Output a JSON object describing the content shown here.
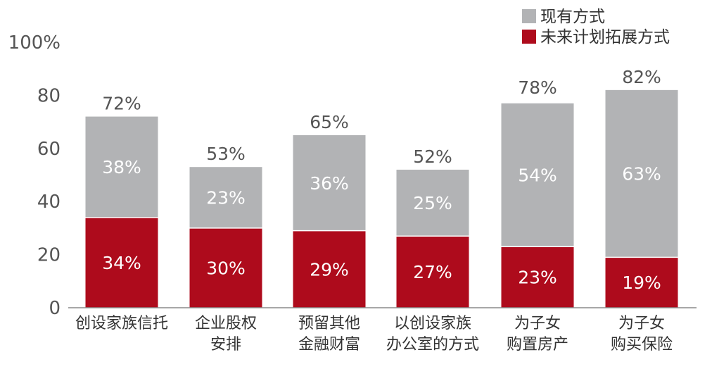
{
  "chart_data": {
    "type": "bar",
    "stacked": true,
    "categories": [
      [
        "创设家族信托"
      ],
      [
        "企业股权",
        "安排"
      ],
      [
        "预留其他",
        "金融财富"
      ],
      [
        "以创设家族",
        "办公室的方式"
      ],
      [
        "为子女",
        "购置房产"
      ],
      [
        "为子女",
        "购买保险"
      ]
    ],
    "series": [
      {
        "name": "未来计划拓展方式",
        "color": "#ae0b1c",
        "values": [
          34,
          30,
          29,
          27,
          23,
          19
        ],
        "labels": [
          "34%",
          "30%",
          "29%",
          "27%",
          "23%",
          "19%"
        ]
      },
      {
        "name": "现有方式",
        "color": "#b2b3b5",
        "values": [
          38,
          23,
          36,
          25,
          54,
          63
        ],
        "labels": [
          "38%",
          "23%",
          "36%",
          "25%",
          "54%",
          "63%"
        ]
      }
    ],
    "totals": [
      72,
      53,
      65,
      52,
      78,
      82
    ],
    "total_labels": [
      "72%",
      "53%",
      "65%",
      "52%",
      "78%",
      "82%"
    ],
    "ylim": [
      0,
      100
    ],
    "yticks": [
      0,
      20,
      40,
      60,
      80,
      100
    ],
    "ytick_labels": [
      "0",
      "20",
      "40",
      "60",
      "80",
      "100%"
    ],
    "legend": {
      "placement": "top-right",
      "items": [
        {
          "label": "现有方式",
          "color": "#b2b3b5"
        },
        {
          "label": "未来计划拓展方式",
          "color": "#ae0b1c"
        }
      ]
    },
    "grid": false
  }
}
